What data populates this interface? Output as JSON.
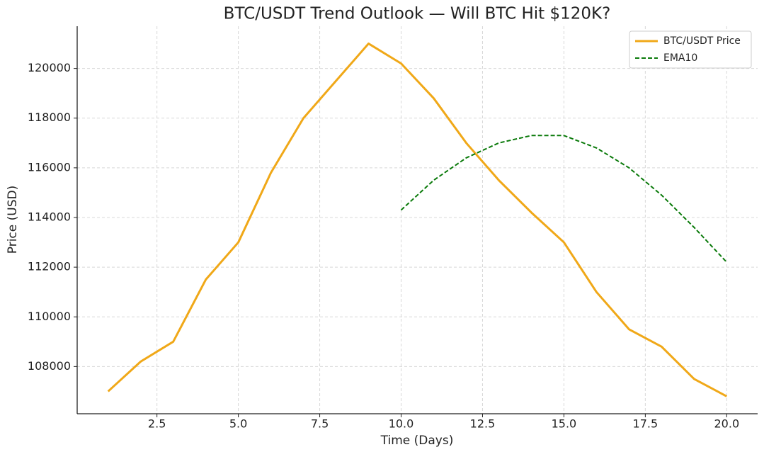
{
  "chart_data": {
    "type": "line",
    "title": "BTC/USDT Trend Outlook — Will BTC Hit $120K?",
    "x_label": "Time (Days)",
    "y_label": "Price (USD)",
    "x": [
      1,
      2,
      3,
      4,
      5,
      6,
      7,
      8,
      9,
      10,
      11,
      12,
      13,
      14,
      15,
      16,
      17,
      18,
      19,
      20
    ],
    "series": [
      {
        "name": "BTC/USDT Price",
        "color": "#f0a818",
        "dash": "solid",
        "values": [
          107000,
          108200,
          109000,
          111500,
          113000,
          115800,
          118000,
          119500,
          121000,
          120200,
          118800,
          117000,
          115500,
          114200,
          113000,
          111000,
          109500,
          108800,
          107500,
          106800
        ]
      },
      {
        "name": "EMA10",
        "color": "#0a7a0a",
        "dash": "dashed",
        "values": [
          null,
          null,
          null,
          null,
          null,
          null,
          null,
          null,
          null,
          114300,
          115500,
          116400,
          117000,
          117300,
          117300,
          116800,
          116000,
          114900,
          113600,
          112200
        ]
      }
    ],
    "xlim": [
      0.05,
      20.95
    ],
    "ylim": [
      106100,
      121700
    ],
    "xticks": [
      2.5,
      {
        "value": 5,
        "label": "5.0"
      },
      7.5,
      {
        "value": 10,
        "label": "10.0"
      },
      12.5,
      {
        "value": 15,
        "label": "15.0"
      },
      17.5,
      {
        "value": 20,
        "label": "20.0"
      }
    ],
    "yticks": [
      108000,
      110000,
      112000,
      114000,
      116000,
      118000,
      120000
    ],
    "grid": true,
    "legend": "upper right"
  }
}
